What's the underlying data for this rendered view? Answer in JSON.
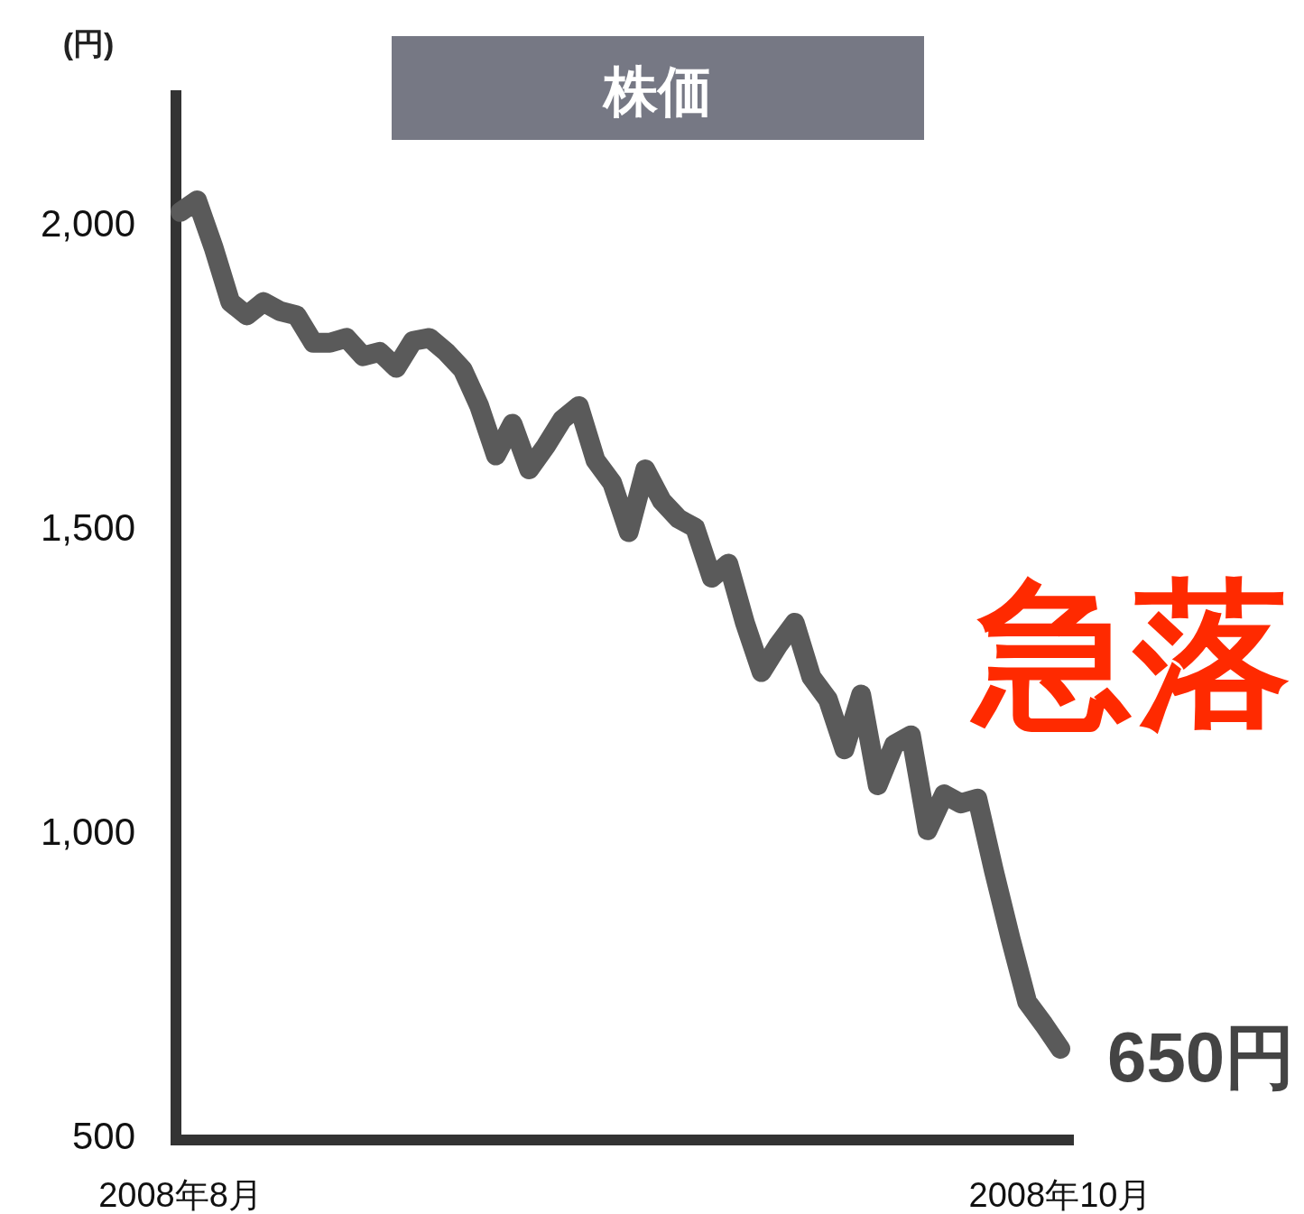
{
  "chart_data": {
    "type": "line",
    "title": "株価",
    "ylabel": "(円)",
    "categories": [
      "2008年8月",
      null,
      null,
      null,
      null,
      null,
      null,
      null,
      null,
      null,
      null,
      null,
      null,
      null,
      null,
      null,
      null,
      null,
      null,
      null,
      null,
      null,
      null,
      null,
      null,
      null,
      null,
      null,
      null,
      null,
      null,
      null,
      null,
      null,
      null,
      null,
      null,
      null,
      null,
      null,
      null,
      null,
      null,
      null,
      null,
      null,
      null,
      null,
      null,
      null,
      null,
      null,
      null,
      "2008年10月"
    ],
    "values": [
      2025,
      2044,
      1966,
      1877,
      1855,
      1877,
      1862,
      1855,
      1810,
      1810,
      1818,
      1788,
      1795,
      1769,
      1813,
      1818,
      1795,
      1766,
      1706,
      1625,
      1677,
      1602,
      1640,
      1684,
      1706,
      1617,
      1580,
      1499,
      1602,
      1550,
      1521,
      1506,
      1424,
      1447,
      1350,
      1269,
      1313,
      1350,
      1261,
      1224,
      1142,
      1232,
      1083,
      1150,
      1165,
      1009,
      1068,
      1053,
      1061,
      942,
      831,
      727,
      690,
      650
    ],
    "color": "#5a5a5a",
    "ylim": [
      500,
      2225
    ],
    "yticks": [
      500,
      {
        "value": 1000,
        "label": "1,000"
      },
      {
        "value": 1500,
        "label": "1,500"
      },
      {
        "value": 2000,
        "label": "2,000"
      }
    ],
    "annotations": [
      "急落",
      "650円"
    ]
  }
}
